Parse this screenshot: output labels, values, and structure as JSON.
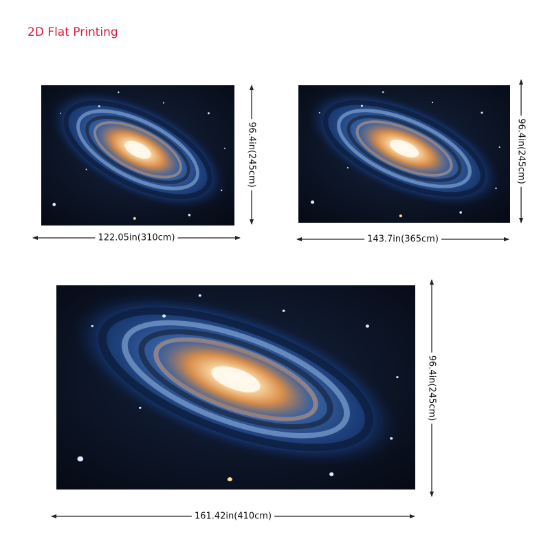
{
  "header": {
    "title": "2D Flat Printing"
  },
  "panels": [
    {
      "width": "122.05in(310cm)",
      "height": "96.4in(245cm)"
    },
    {
      "width": "143.7in(365cm)",
      "height": "96.4in(245cm)"
    },
    {
      "width": "161.42in(410cm)",
      "height": "96.4in(245cm)"
    }
  ]
}
